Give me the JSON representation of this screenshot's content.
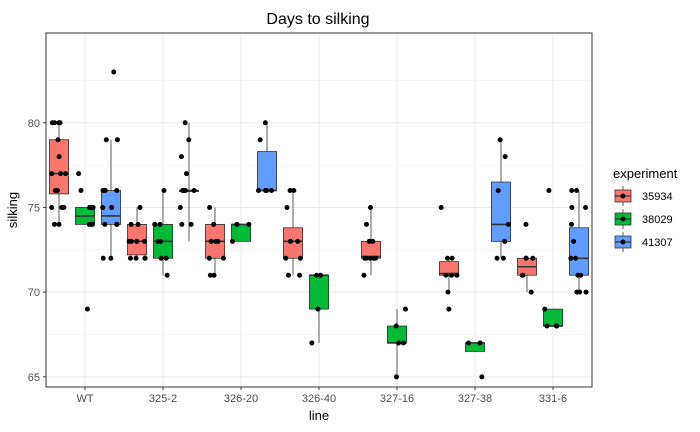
{
  "chart_data": {
    "type": "box",
    "title": "Days to silking",
    "xlabel": "line",
    "ylabel": "silking",
    "ylim": [
      64.4,
      85.3
    ],
    "yticks": [
      65,
      70,
      75,
      80
    ],
    "grid": true,
    "legend_position": "right",
    "legend_title": "experiment",
    "categories": [
      "WT",
      "325-2",
      "326-20",
      "326-40",
      "327-16",
      "327-38",
      "331-6"
    ],
    "series": [
      {
        "name": "35934",
        "color": "#F8766D",
        "boxes": [
          {
            "category": "WT",
            "low": 74,
            "q1": 75.8,
            "median": 77,
            "q3": 79,
            "high": 80,
            "points": [
              80,
              80,
              80,
              80,
              79,
              78,
              77,
              77,
              77,
              76,
              76,
              75,
              75,
              75,
              74,
              74
            ]
          },
          {
            "category": "325-2",
            "low": 72,
            "q1": 72.2,
            "median": 73,
            "q3": 74,
            "high": 75,
            "points": [
              75,
              74,
              74,
              73,
              73,
              73,
              73,
              72,
              72,
              72,
              72
            ]
          },
          {
            "category": "326-20",
            "low": 71,
            "q1": 72,
            "median": 73,
            "q3": 74,
            "high": 75,
            "points": [
              75,
              74,
              73,
              73,
              73,
              72,
              72,
              71,
              71
            ]
          },
          {
            "category": "326-40",
            "low": 71,
            "q1": 72,
            "median": 73,
            "q3": 73.8,
            "high": 76,
            "points": [
              76,
              76,
              75,
              73,
              73,
              73,
              72,
              72,
              71,
              71
            ]
          },
          {
            "category": "327-16",
            "low": 71,
            "q1": 72,
            "median": 72.1,
            "q3": 73,
            "high": 75,
            "points": [
              75,
              74,
              73,
              73,
              72,
              72,
              72,
              72,
              72,
              71
            ]
          },
          {
            "category": "327-38",
            "low": 70,
            "q1": 71,
            "median": 71.1,
            "q3": 71.8,
            "high": 72,
            "points": [
              75,
              72,
              72,
              71,
              71,
              71,
              70,
              69
            ]
          },
          {
            "category": "331-6",
            "low": 70,
            "q1": 71,
            "median": 71.5,
            "q3": 72,
            "high": 72,
            "points": [
              74,
              72,
              72,
              72,
              71,
              71,
              70
            ]
          }
        ]
      },
      {
        "name": "38029",
        "color": "#00BA38",
        "boxes": [
          {
            "category": "WT",
            "low": 74,
            "q1": 74,
            "median": 74.5,
            "q3": 75,
            "high": 75,
            "points": [
              77,
              76,
              75,
              75,
              75,
              74,
              74,
              74,
              69
            ]
          },
          {
            "category": "325-2",
            "low": 71,
            "q1": 72,
            "median": 73,
            "q3": 74,
            "high": 76,
            "points": [
              76,
              74,
              74,
              73,
              73,
              72,
              72,
              71
            ]
          },
          {
            "category": "326-20",
            "low": 73,
            "q1": 73,
            "median": 74,
            "q3": 74,
            "high": 74,
            "points": [
              74,
              74,
              73
            ]
          },
          {
            "category": "326-40",
            "low": 67,
            "q1": 69,
            "median": 71,
            "q3": 71,
            "high": 71,
            "points": [
              71,
              71,
              69,
              67
            ]
          },
          {
            "category": "327-16",
            "low": 65,
            "q1": 67,
            "median": 67,
            "q3": 68,
            "high": 69,
            "points": [
              69,
              68,
              67,
              67,
              65
            ]
          },
          {
            "category": "327-38",
            "low": 66.5,
            "q1": 66.5,
            "median": 67,
            "q3": 67,
            "high": 67,
            "points": [
              67,
              67,
              65
            ]
          },
          {
            "category": "331-6",
            "low": 68,
            "q1": 68,
            "median": 68,
            "q3": 69,
            "high": 69,
            "points": [
              76,
              69,
              68,
              68,
              68
            ]
          }
        ]
      },
      {
        "name": "41307",
        "color": "#619CFF",
        "boxes": [
          {
            "category": "WT",
            "low": 72,
            "q1": 74,
            "median": 74.5,
            "q3": 76,
            "high": 79,
            "points": [
              83,
              79,
              79,
              76,
              76,
              76,
              76,
              75,
              75,
              74,
              74,
              74,
              72,
              72
            ]
          },
          {
            "category": "325-2",
            "low": 73,
            "q1": 76,
            "median": 76,
            "q3": 76,
            "high": 80,
            "points": [
              80,
              79,
              78,
              77,
              76,
              76,
              76,
              76,
              76,
              75,
              74,
              74
            ]
          },
          {
            "category": "326-20",
            "low": 76,
            "q1": 76,
            "median": 76,
            "q3": 78.3,
            "high": 80,
            "points": [
              80,
              79,
              76,
              76,
              76,
              76
            ]
          },
          {
            "category": "327-38",
            "low": 72,
            "q1": 73,
            "median": 74,
            "q3": 76.5,
            "high": 79,
            "points": [
              79,
              78,
              76,
              74,
              73,
              72,
              72
            ]
          },
          {
            "category": "331-6",
            "low": 70,
            "q1": 71,
            "median": 72,
            "q3": 73.8,
            "high": 76,
            "points": [
              76,
              76,
              75,
              75,
              74,
              73,
              72,
              72,
              71,
              71,
              70,
              70,
              70
            ]
          }
        ]
      }
    ]
  }
}
